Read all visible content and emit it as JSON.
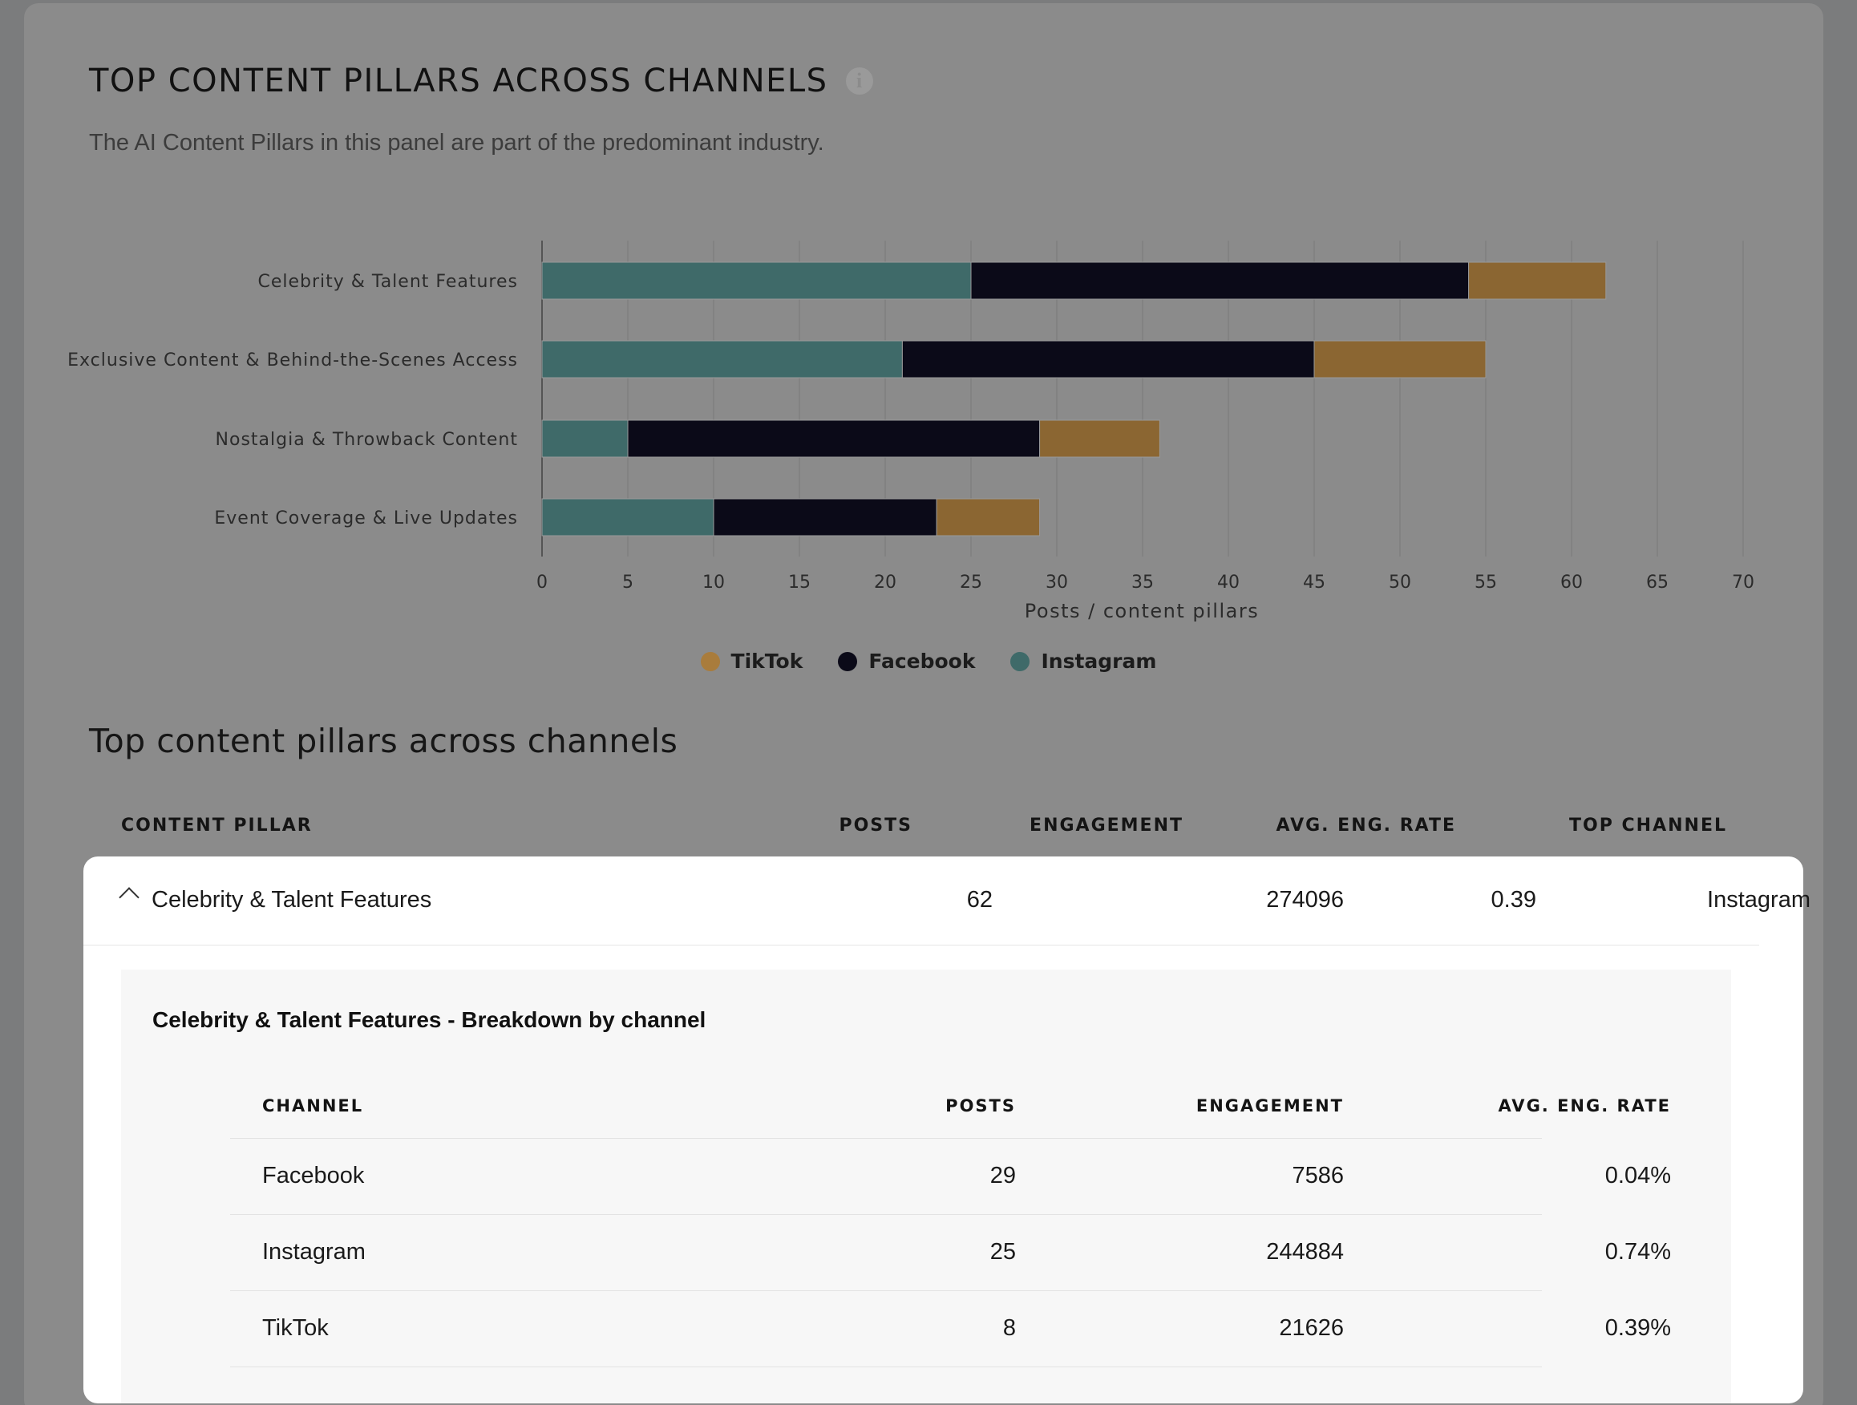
{
  "header": {
    "title": "TOP CONTENT PILLARS ACROSS CHANNELS",
    "info_icon": "info-icon",
    "subtitle": "The AI Content Pillars in this panel are part of the predominant industry."
  },
  "colors": {
    "instagram": "#3f6a69",
    "facebook": "#0b0a18",
    "tiktok": "#8b6632"
  },
  "chart_data": {
    "type": "bar",
    "orientation": "horizontal",
    "stacked": true,
    "categories": [
      "Celebrity & Talent Features",
      "Exclusive Content & Behind-the-Scenes Access",
      "Nostalgia & Throwback Content",
      "Event Coverage & Live Updates"
    ],
    "series": [
      {
        "name": "Instagram",
        "values": [
          25,
          21,
          5,
          10
        ]
      },
      {
        "name": "Facebook",
        "values": [
          29,
          24,
          24,
          13
        ]
      },
      {
        "name": "TikTok",
        "values": [
          8,
          10,
          7,
          6
        ]
      }
    ],
    "xlabel": "Posts / content pillars",
    "xlim": [
      0,
      70
    ],
    "xticks": [
      "0",
      "5",
      "10",
      "15",
      "20",
      "25",
      "30",
      "35",
      "40",
      "45",
      "50",
      "55",
      "60",
      "65",
      "70"
    ],
    "grid": true,
    "legend_position": "bottom-center",
    "legend": [
      "TikTok",
      "Facebook",
      "Instagram"
    ]
  },
  "table": {
    "section_title": "Top content pillars across channels",
    "headers": {
      "pillar": "CONTENT PILLAR",
      "posts": "POSTS",
      "engagement": "ENGAGEMENT",
      "rate": "AVG. ENG. RATE",
      "top_channel": "TOP CHANNEL"
    },
    "expanded_row": {
      "pillar": "Celebrity & Talent Features",
      "posts": "62",
      "engagement": "274096",
      "rate": "0.39",
      "top_channel": "Instagram"
    },
    "breakdown": {
      "title": "Celebrity & Talent Features - Breakdown by channel",
      "headers": {
        "channel": "CHANNEL",
        "posts": "POSTS",
        "engagement": "ENGAGEMENT",
        "rate": "AVG. ENG. RATE"
      },
      "rows": [
        {
          "channel": "Facebook",
          "posts": "29",
          "engagement": "7586",
          "rate": "0.04%"
        },
        {
          "channel": "Instagram",
          "posts": "25",
          "engagement": "244884",
          "rate": "0.74%"
        },
        {
          "channel": "TikTok",
          "posts": "8",
          "engagement": "21626",
          "rate": "0.39%"
        }
      ]
    }
  }
}
